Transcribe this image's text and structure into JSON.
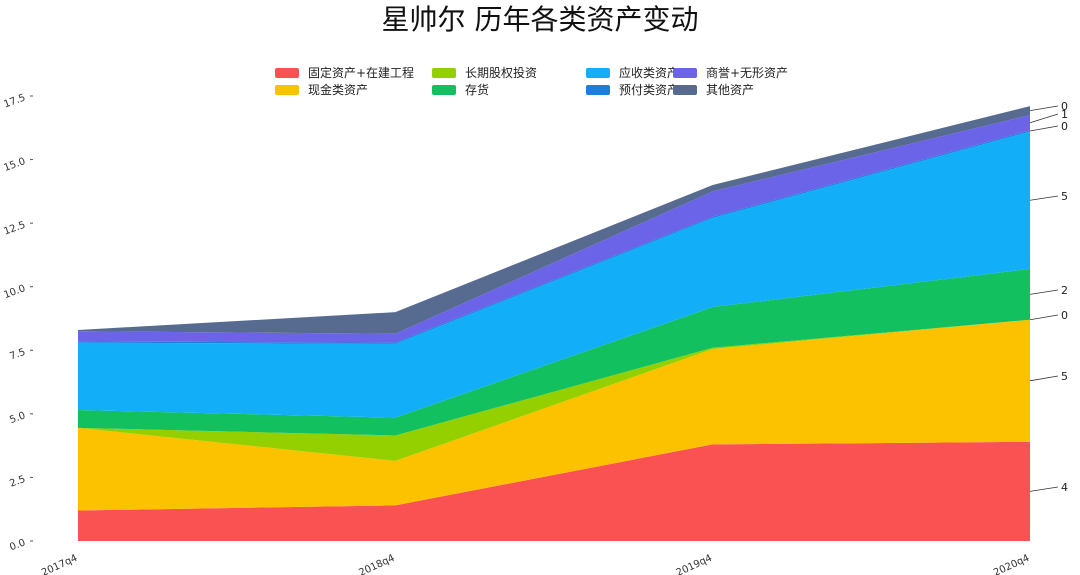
{
  "chart_data": {
    "type": "area",
    "title": "星帅尔  历年各类资产变动",
    "categories": [
      "2017q4",
      "2018q4",
      "2019q4",
      "2020q4"
    ],
    "ylim": [
      0,
      17.5
    ],
    "yticks": [
      "0.0",
      "2.5",
      "5.0",
      "7.5",
      "10.0",
      "12.5",
      "15.0",
      "17.5"
    ],
    "stacked": true,
    "grid": false,
    "legend_position": "top-center",
    "series": [
      {
        "name": "固定资产+在建工程",
        "color": "#fa5252",
        "values": [
          1.2,
          1.4,
          3.8,
          3.9
        ]
      },
      {
        "name": "现金类资产",
        "color": "#fcc200",
        "values": [
          3.25,
          1.75,
          3.75,
          4.8
        ]
      },
      {
        "name": "长期股权投资",
        "color": "#94d000",
        "values": [
          0.0,
          1.0,
          0.05,
          0.0
        ]
      },
      {
        "name": "存货",
        "color": "#12c060",
        "values": [
          0.7,
          0.7,
          1.6,
          2.0
        ]
      },
      {
        "name": "应收类资产",
        "color": "#12aff8",
        "values": [
          2.65,
          2.9,
          3.5,
          5.4
        ]
      },
      {
        "name": "预付类资产",
        "color": "#1b7fe0",
        "values": [
          0.05,
          0.05,
          0.05,
          0.05
        ]
      },
      {
        "name": "商誉+无形资产",
        "color": "#6b63e8",
        "values": [
          0.4,
          0.35,
          1.0,
          0.6
        ]
      },
      {
        "name": "其他资产",
        "color": "#576a90",
        "values": [
          0.05,
          0.85,
          0.25,
          0.35
        ]
      }
    ],
    "end_labels": [
      "4",
      "5",
      "0",
      "2",
      "5",
      "0",
      "1",
      "0"
    ]
  }
}
